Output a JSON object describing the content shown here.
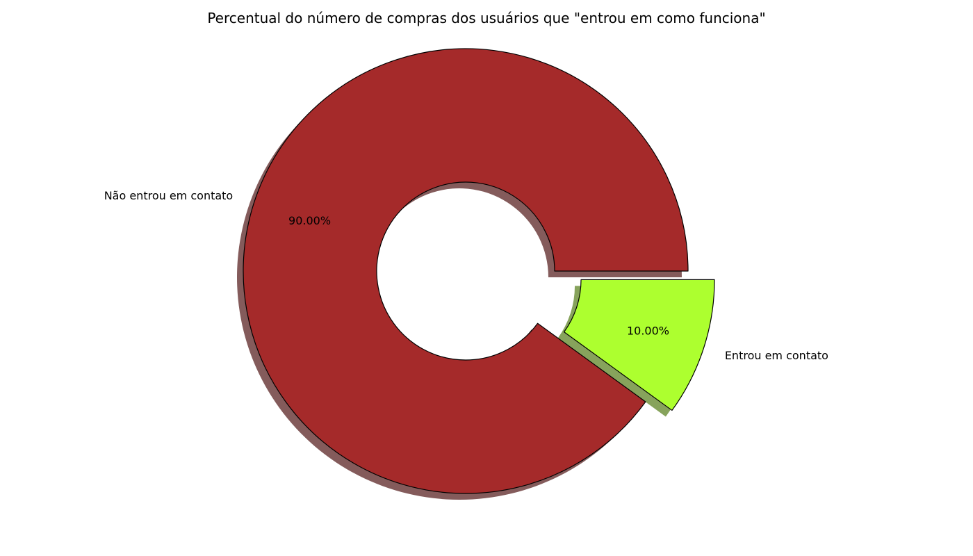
{
  "chart_data": {
    "type": "pie",
    "title": "Percentual do número de compras dos usuários que \"entrou em como funciona\"",
    "donut": true,
    "shadow": true,
    "start_angle_deg": 0,
    "direction": "counterclockwise",
    "value_format": "0.00%",
    "slices": [
      {
        "label": "Não entrou em contato",
        "value": 90.0,
        "pct_label": "90.00%",
        "color": "#a52a2a",
        "explode": false
      },
      {
        "label": "Entrou em contato",
        "value": 10.0,
        "pct_label": "10.00%",
        "color": "#adff2f",
        "explode": true
      }
    ]
  }
}
